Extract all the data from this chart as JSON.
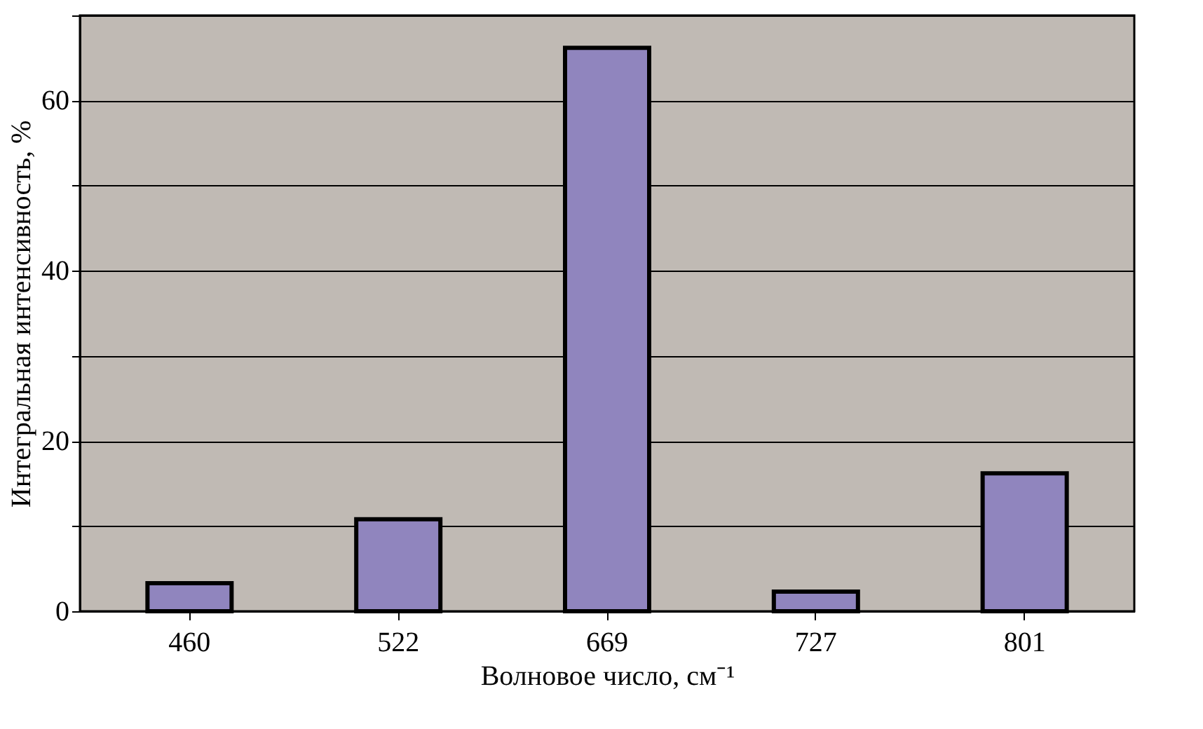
{
  "chart_data": {
    "type": "bar",
    "xlabel": "Волновое число, см⁻¹",
    "ylabel": "Интегральная интенсивность, %",
    "categories": [
      "460",
      "522",
      "669",
      "727",
      "801"
    ],
    "values": [
      3.3,
      10.8,
      66.2,
      2.3,
      16.2
    ],
    "color": "#9085be",
    "ylim": [
      0,
      70
    ],
    "yticks": [
      0,
      {
        "value": 10,
        "label": null
      },
      20,
      {
        "value": 30,
        "label": null
      },
      40,
      {
        "value": 50,
        "label": null
      },
      60,
      {
        "value": 70,
        "label": null
      }
    ],
    "grid": "y"
  }
}
